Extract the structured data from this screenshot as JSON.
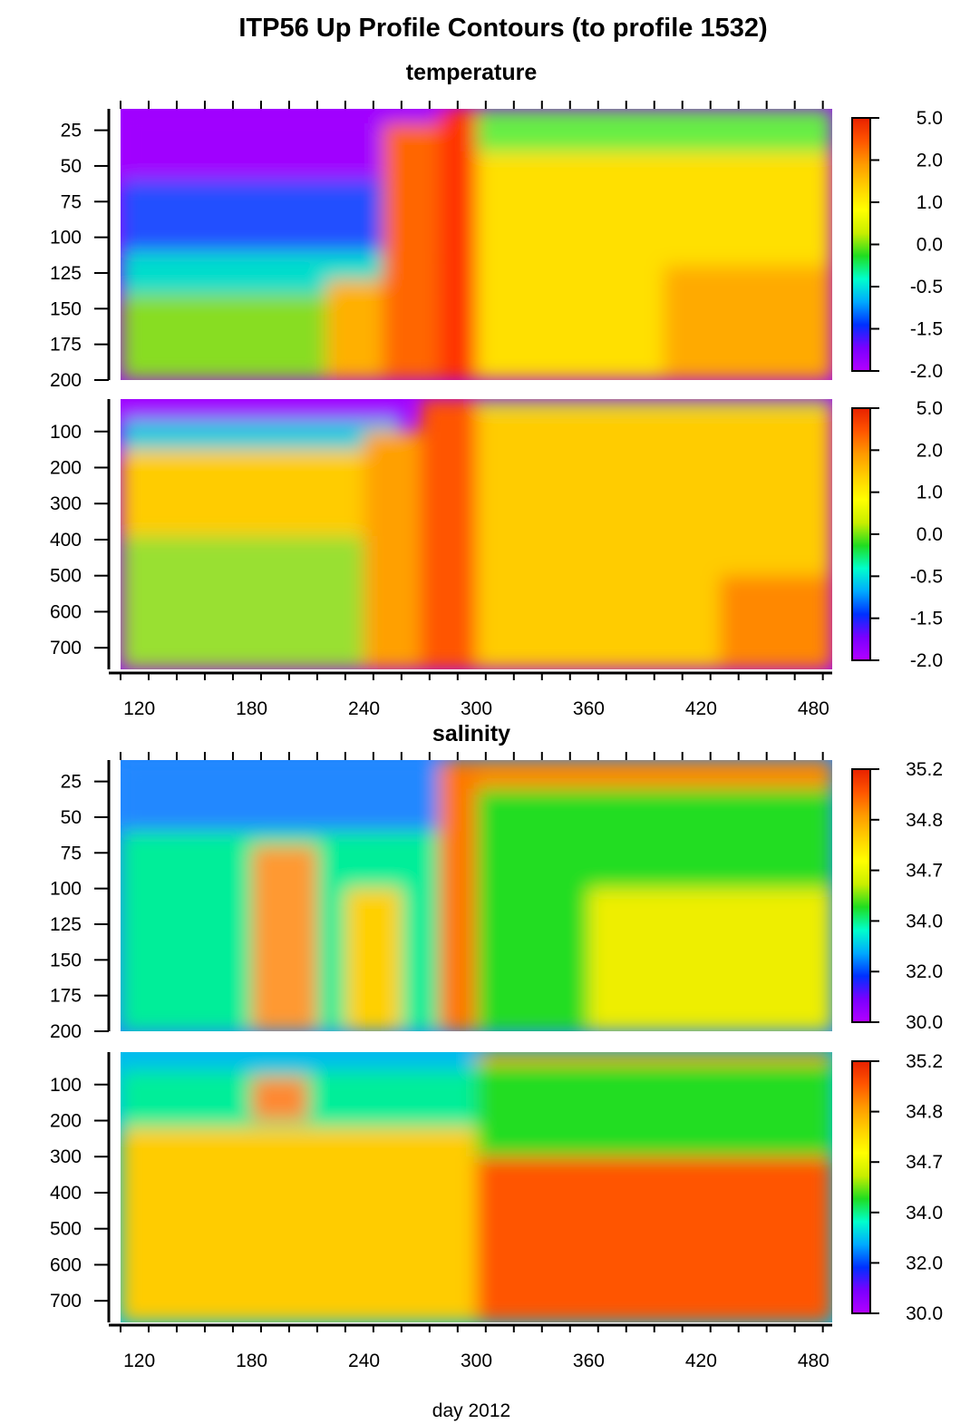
{
  "figure": {
    "title": "ITP56 Up Profile Contours (to profile 1532)",
    "xlabel": "day 2012",
    "background": "#ffffff"
  },
  "colormap": [
    "#b300ff",
    "#7a00ff",
    "#0030ff",
    "#00aaff",
    "#00ffcc",
    "#20dd20",
    "#c8ee00",
    "#ffff00",
    "#ffd000",
    "#ff9a00",
    "#ff5500",
    "#e82000"
  ],
  "chart_data": [
    {
      "type": "heatmap",
      "section": "temperature",
      "title": "temperature",
      "panels": [
        {
          "name": "temperature-upper",
          "xlim": [
            110,
            490
          ],
          "ylim": [
            10,
            200
          ],
          "x_ticks": [
            120,
            180,
            240,
            300,
            360,
            420,
            480
          ],
          "y_ticks": [
            25,
            50,
            75,
            100,
            125,
            150,
            175,
            200
          ],
          "colorbar_labels": [
            "5.0",
            "2.0",
            "1.0",
            "0.0",
            "-0.5",
            "-1.5",
            "-2.0"
          ],
          "layers": [
            {
              "bounds": [
                110,
                280,
                10,
                95
              ],
              "color": "#a000ff"
            },
            {
              "bounds": [
                110,
                280,
                60,
                120
              ],
              "color": "#2050ff"
            },
            {
              "bounds": [
                110,
                280,
                110,
                145
              ],
              "color": "#00ddcc"
            },
            {
              "bounds": [
                110,
                280,
                140,
                200
              ],
              "color": "#88dd22"
            },
            {
              "bounds": [
                220,
                250,
                130,
                200
              ],
              "color": "#ffb000"
            },
            {
              "bounds": [
                250,
                280,
                20,
                200
              ],
              "color": "#ff6600"
            },
            {
              "bounds": [
                280,
                300,
                10,
                200
              ],
              "color": "#ff3300"
            },
            {
              "bounds": [
                300,
                490,
                10,
                55
              ],
              "color": "#66ee44"
            },
            {
              "bounds": [
                300,
                490,
                40,
                200
              ],
              "color": "#ffe000"
            },
            {
              "bounds": [
                400,
                490,
                120,
                200
              ],
              "color": "#ffaa00"
            }
          ]
        },
        {
          "name": "temperature-lower",
          "xlim": [
            110,
            490
          ],
          "ylim": [
            10,
            760
          ],
          "x_ticks": [
            120,
            180,
            240,
            300,
            360,
            420,
            480
          ],
          "y_ticks": [
            100,
            200,
            300,
            400,
            500,
            600,
            700
          ],
          "colorbar_labels": [
            "5.0",
            "2.0",
            "1.0",
            "0.0",
            "-0.5",
            "-1.5",
            "-2.0"
          ],
          "layers": [
            {
              "bounds": [
                110,
                260,
                10,
                80
              ],
              "color": "#a000ff"
            },
            {
              "bounds": [
                110,
                260,
                70,
                160
              ],
              "color": "#00ccdd"
            },
            {
              "bounds": [
                110,
                260,
                150,
                400
              ],
              "color": "#ffcc00"
            },
            {
              "bounds": [
                110,
                260,
                390,
                760
              ],
              "color": "#99e030"
            },
            {
              "bounds": [
                240,
                270,
                100,
                760
              ],
              "color": "#ffa000"
            },
            {
              "bounds": [
                270,
                300,
                10,
                760
              ],
              "color": "#ff5500"
            },
            {
              "bounds": [
                300,
                490,
                10,
                40
              ],
              "color": "#55ee55"
            },
            {
              "bounds": [
                300,
                490,
                30,
                760
              ],
              "color": "#ffcc00"
            },
            {
              "bounds": [
                430,
                490,
                500,
                760
              ],
              "color": "#ff8800"
            }
          ]
        }
      ]
    },
    {
      "type": "heatmap",
      "section": "salinity",
      "title": "salinity",
      "panels": [
        {
          "name": "salinity-upper",
          "xlim": [
            110,
            490
          ],
          "ylim": [
            10,
            200
          ],
          "x_ticks": [
            120,
            180,
            240,
            300,
            360,
            420,
            480
          ],
          "y_ticks": [
            25,
            50,
            75,
            100,
            125,
            150,
            175,
            200
          ],
          "colorbar_labels": [
            "35.2",
            "34.8",
            "34.7",
            "34.0",
            "32.0",
            "30.0"
          ],
          "layers": [
            {
              "bounds": [
                110,
                300,
                10,
                80
              ],
              "color": "#2288ff"
            },
            {
              "bounds": [
                110,
                300,
                60,
                200
              ],
              "color": "#00ee99"
            },
            {
              "bounds": [
                180,
                215,
                70,
                200
              ],
              "color": "#ff9933"
            },
            {
              "bounds": [
                230,
                260,
                100,
                200
              ],
              "color": "#ffd000"
            },
            {
              "bounds": [
                280,
                300,
                10,
                200
              ],
              "color": "#ff7700"
            },
            {
              "bounds": [
                300,
                490,
                10,
                40
              ],
              "color": "#ff8800"
            },
            {
              "bounds": [
                300,
                490,
                30,
                200
              ],
              "color": "#22dd22"
            },
            {
              "bounds": [
                360,
                490,
                100,
                200
              ],
              "color": "#eeee00"
            }
          ]
        },
        {
          "name": "salinity-lower",
          "xlim": [
            110,
            490
          ],
          "ylim": [
            10,
            760
          ],
          "x_ticks": [
            120,
            180,
            240,
            300,
            360,
            420,
            480
          ],
          "y_ticks": [
            100,
            200,
            300,
            400,
            500,
            600,
            700
          ],
          "colorbar_labels": [
            "35.2",
            "34.8",
            "34.7",
            "34.0",
            "32.0",
            "30.0"
          ],
          "layers": [
            {
              "bounds": [
                110,
                300,
                10,
                70
              ],
              "color": "#00bbee"
            },
            {
              "bounds": [
                110,
                300,
                60,
                230
              ],
              "color": "#00ee99"
            },
            {
              "bounds": [
                110,
                300,
                220,
                760
              ],
              "color": "#ffcc00"
            },
            {
              "bounds": [
                180,
                210,
                80,
                200
              ],
              "color": "#ff8833"
            },
            {
              "bounds": [
                300,
                490,
                10,
                40
              ],
              "color": "#ff8800"
            },
            {
              "bounds": [
                300,
                490,
                40,
                300
              ],
              "color": "#22dd22"
            },
            {
              "bounds": [
                300,
                490,
                300,
                760
              ],
              "color": "#ff5500"
            }
          ]
        }
      ]
    }
  ]
}
